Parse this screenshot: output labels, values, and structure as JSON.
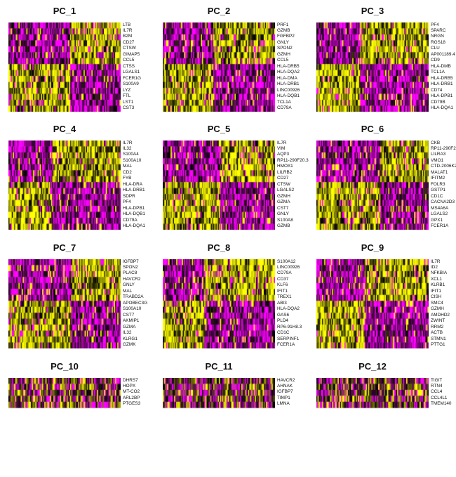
{
  "colors": {
    "low": "#ff00ff",
    "mid": "#000000",
    "high": "#ffff00"
  },
  "chart_data": {
    "type": "heatmap",
    "title": "",
    "panels": [
      {
        "title": "PC_1",
        "genes": [
          "LTB",
          "IL7R",
          "B2M",
          "CD27",
          "CTSW",
          "GIMAP5",
          "CCL5",
          "CTSS",
          "LGALS1",
          "FCER1G",
          "S100A9",
          "LYZ",
          "FTL",
          "LST1",
          "CST3"
        ]
      },
      {
        "title": "PC_2",
        "genes": [
          "PRF1",
          "GZMB",
          "FGFBP2",
          "GNLY",
          "SPON2",
          "GZMH",
          "CCL5",
          "HLA-DRB5",
          "HLA-DQA2",
          "HLA-DMA",
          "HLA-DRB1",
          "LINC00926",
          "HLA-DQB1",
          "TCL1A",
          "CD79A"
        ]
      },
      {
        "title": "PC_3",
        "genes": [
          "PF4",
          "SPARC",
          "NRGN",
          "RGS18",
          "CLU",
          "AP001189.4",
          "CD9",
          "HLA-DMB",
          "TCL1A",
          "HLA-DRB5",
          "HLA-DRB1",
          "CD74",
          "HLA-DPB1",
          "CD79B",
          "HLA-DQA1"
        ]
      },
      {
        "title": "PC_4",
        "genes": [
          "IL7R",
          "IL32",
          "S100A4",
          "S100A10",
          "MAL",
          "CD2",
          "FYB",
          "HLA-DRA",
          "HLA-DRB1",
          "SDPR",
          "PF4",
          "HLA-DPB1",
          "HLA-DQB1",
          "CD79A",
          "HLA-DQA1"
        ]
      },
      {
        "title": "PC_5",
        "genes": [
          "IL7R",
          "VIM",
          "AQP3",
          "RP11-290F20.3",
          "HMOX1",
          "LILRB2",
          "CD27",
          "CTSW",
          "LGALS2",
          "GZMH",
          "GZMA",
          "CST7",
          "GNLY",
          "S100A8",
          "GZMB"
        ]
      },
      {
        "title": "PC_6",
        "genes": [
          "CKB",
          "RP11-290F20.3",
          "LILRA3",
          "VMO1",
          "CTD-2006K23.1",
          "MALAT1",
          "IFITM2",
          "FOLR3",
          "GSTP1",
          "CD1C",
          "CACNA2D3",
          "MS4A6A",
          "LGALS2",
          "GPX1",
          "FCER1A"
        ]
      },
      {
        "title": "PC_7",
        "genes": [
          "IGFBP7",
          "SPON2",
          "PLAC8",
          "HAVCR2",
          "GNLY",
          "MAL",
          "TRABD2A",
          "APOBEC3G",
          "S100A10",
          "CST7",
          "AKMIP1",
          "GZMA",
          "IL32",
          "KLRG1",
          "GZMK"
        ]
      },
      {
        "title": "PC_8",
        "genes": [
          "S100A12",
          "LINC00926",
          "CD79A",
          "CD37",
          "KLF6",
          "IFIT1",
          "TREX1",
          "ABI3",
          "HLA-DQA2",
          "GAS6",
          "PLD4",
          "RP6-91H8.3",
          "CD1C",
          "SERPINF1",
          "FCER1A"
        ]
      },
      {
        "title": "PC_9",
        "genes": [
          "IL7R",
          "ID2",
          "NFKBIA",
          "XCL1",
          "KLRB1",
          "IFIT1",
          "CISH",
          "SMC4",
          "GZMH",
          "AMDHD2",
          "ZWINT",
          "RRM2",
          "ACTB",
          "STMN1",
          "PTTG1"
        ]
      },
      {
        "title": "PC_10",
        "genes": [
          "DHRS7",
          "HOPX",
          "MT-CO2",
          "ARL2BP",
          "PTGES3"
        ]
      },
      {
        "title": "PC_11",
        "genes": [
          "HAVCR2",
          "AHNAK",
          "IGFBP7",
          "TIMP1",
          "LMNA"
        ]
      },
      {
        "title": "PC_12",
        "genes": [
          "TIGIT",
          "RTN4",
          "CCL4",
          "CCL4L1",
          "TMEM140"
        ]
      }
    ]
  }
}
